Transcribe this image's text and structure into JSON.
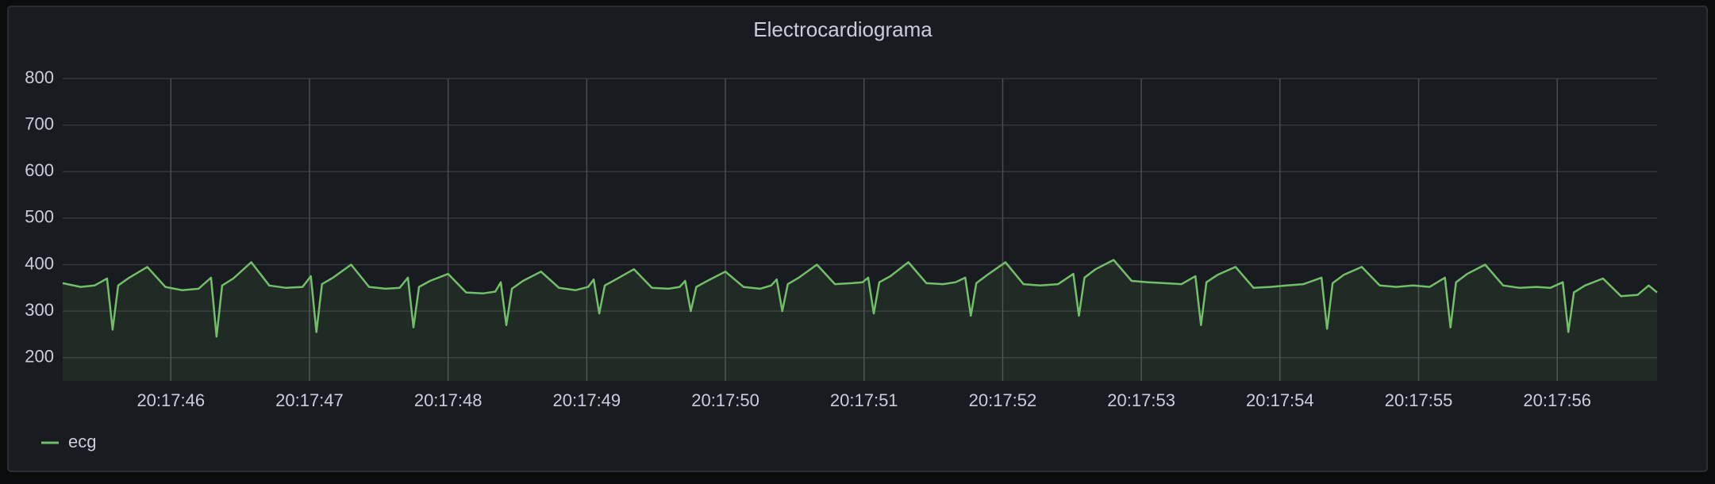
{
  "chart_data": {
    "type": "line",
    "title": "Electrocardiograma",
    "x": [
      45.22,
      45.35,
      45.45,
      45.54,
      45.58,
      45.62,
      45.7,
      45.83,
      45.96,
      46.08,
      46.2,
      46.29,
      46.33,
      46.37,
      46.45,
      46.58,
      46.71,
      46.83,
      46.95,
      47.01,
      47.05,
      47.09,
      47.17,
      47.3,
      47.43,
      47.55,
      47.65,
      47.71,
      47.75,
      47.79,
      47.87,
      48.0,
      48.13,
      48.25,
      48.34,
      48.38,
      48.42,
      48.46,
      48.54,
      48.67,
      48.8,
      48.92,
      49.01,
      49.05,
      49.09,
      49.13,
      49.21,
      49.34,
      49.47,
      49.59,
      49.67,
      49.71,
      49.75,
      49.79,
      49.87,
      50.0,
      50.13,
      50.25,
      50.33,
      50.37,
      50.41,
      50.45,
      50.53,
      50.66,
      50.79,
      50.91,
      50.99,
      51.03,
      51.07,
      51.11,
      51.19,
      51.32,
      51.45,
      51.57,
      51.66,
      51.73,
      51.77,
      51.81,
      51.89,
      52.02,
      52.15,
      52.27,
      52.4,
      52.51,
      52.55,
      52.59,
      52.67,
      52.8,
      52.93,
      53.05,
      53.17,
      53.29,
      53.39,
      53.43,
      53.47,
      53.55,
      53.68,
      53.81,
      53.93,
      54.05,
      54.17,
      54.3,
      54.34,
      54.38,
      54.46,
      54.59,
      54.72,
      54.84,
      54.96,
      55.08,
      55.19,
      55.23,
      55.27,
      55.35,
      55.48,
      55.61,
      55.73,
      55.85,
      55.95,
      56.04,
      56.08,
      56.12,
      56.2,
      56.33,
      56.46,
      56.58,
      56.66,
      56.72
    ],
    "series": [
      {
        "name": "ecg",
        "color": "#73bf69",
        "values": [
          360,
          352,
          355,
          370,
          260,
          355,
          372,
          395,
          352,
          345,
          348,
          372,
          245,
          355,
          370,
          405,
          355,
          350,
          352,
          375,
          255,
          358,
          372,
          400,
          352,
          348,
          350,
          372,
          265,
          352,
          365,
          380,
          340,
          338,
          342,
          362,
          270,
          348,
          365,
          385,
          350,
          345,
          352,
          368,
          295,
          355,
          368,
          390,
          350,
          348,
          352,
          365,
          300,
          352,
          365,
          385,
          352,
          348,
          355,
          368,
          300,
          358,
          372,
          400,
          358,
          360,
          362,
          372,
          295,
          362,
          375,
          405,
          360,
          358,
          362,
          372,
          290,
          360,
          378,
          405,
          358,
          355,
          358,
          380,
          290,
          372,
          390,
          410,
          365,
          362,
          360,
          358,
          375,
          270,
          362,
          378,
          395,
          350,
          352,
          355,
          358,
          372,
          262,
          360,
          378,
          395,
          355,
          352,
          355,
          352,
          372,
          265,
          362,
          380,
          400,
          355,
          350,
          352,
          350,
          362,
          255,
          340,
          355,
          370,
          332,
          335,
          355,
          340
        ]
      }
    ],
    "xlim": [
      45.22,
      56.72
    ],
    "xticks": [
      {
        "value": 46,
        "label": "20:17:46"
      },
      {
        "value": 47,
        "label": "20:17:47"
      },
      {
        "value": 48,
        "label": "20:17:48"
      },
      {
        "value": 49,
        "label": "20:17:49"
      },
      {
        "value": 50,
        "label": "20:17:50"
      },
      {
        "value": 51,
        "label": "20:17:51"
      },
      {
        "value": 52,
        "label": "20:17:52"
      },
      {
        "value": 53,
        "label": "20:17:53"
      },
      {
        "value": 54,
        "label": "20:17:54"
      },
      {
        "value": 55,
        "label": "20:17:55"
      },
      {
        "value": 56,
        "label": "20:17:56"
      }
    ],
    "ylim": [
      150,
      800
    ],
    "yticks": [
      200,
      300,
      400,
      500,
      600,
      700,
      800
    ],
    "grid": true
  }
}
